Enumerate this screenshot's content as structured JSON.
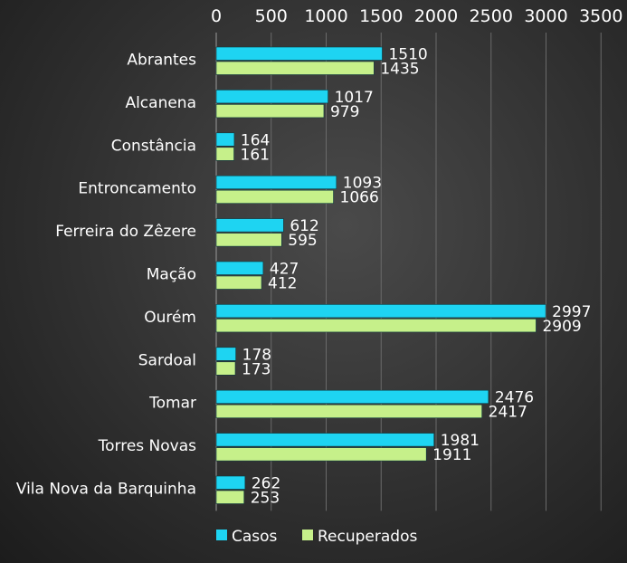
{
  "chart_data": {
    "type": "bar",
    "orientation": "horizontal",
    "categories": [
      "Abrantes",
      "Alcanena",
      "Constância",
      "Entroncamento",
      "Ferreira do Zêzere",
      "Mação",
      "Ourém",
      "Sardoal",
      "Tomar",
      "Torres Novas",
      "Vila Nova da Barquinha"
    ],
    "series": [
      {
        "name": "Casos",
        "color": "#1ed4f2",
        "values": [
          1510,
          1017,
          164,
          1093,
          612,
          427,
          2997,
          178,
          2476,
          1981,
          262
        ]
      },
      {
        "name": "Recuperados",
        "color": "#c6f08a",
        "values": [
          1435,
          979,
          161,
          1066,
          595,
          412,
          2909,
          173,
          2417,
          1911,
          253
        ]
      }
    ],
    "xlim": [
      0,
      3500
    ],
    "xticks": [
      "0",
      "500",
      "1000",
      "1500",
      "2000",
      "2500",
      "3000",
      "3500"
    ],
    "axis_position": "top",
    "grid": true,
    "legend_position": "bottom-left"
  }
}
